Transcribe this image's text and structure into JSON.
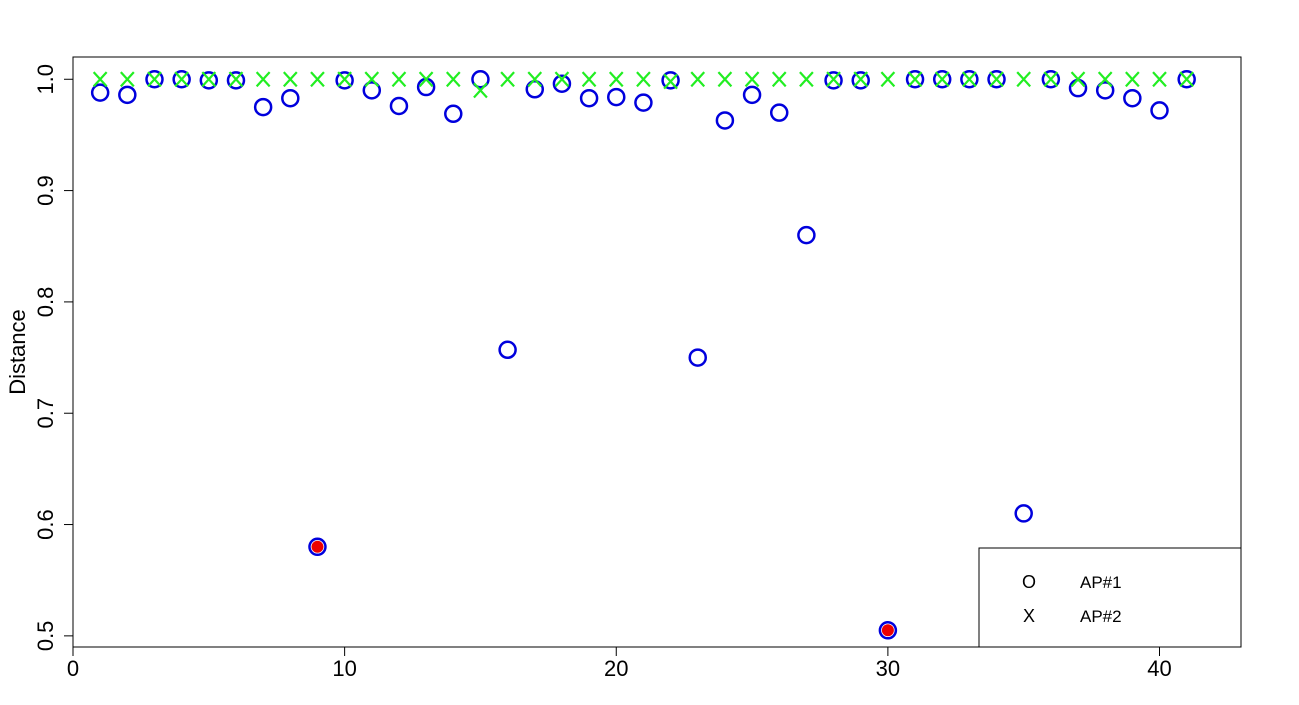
{
  "chart_data": {
    "type": "scatter",
    "title": "",
    "xlabel": "",
    "ylabel": "Distance",
    "xlim": [
      0,
      43
    ],
    "ylim": [
      0.49,
      1.02
    ],
    "xticks": [
      0,
      10,
      20,
      30,
      40
    ],
    "yticks": [
      0.5,
      0.6,
      0.7,
      0.8,
      0.9,
      1.0
    ],
    "xtick_labels": [
      "0",
      "10",
      "20",
      "30",
      "40"
    ],
    "ytick_labels": [
      "0.5",
      "0.6",
      "0.7",
      "0.8",
      "0.9",
      "1.0"
    ],
    "grid": false,
    "legend_position": "bottom-right",
    "series": [
      {
        "name": "AP#1",
        "marker": "O",
        "color": "#0000dd",
        "x": [
          1,
          2,
          3,
          4,
          5,
          6,
          7,
          8,
          9,
          10,
          11,
          12,
          13,
          14,
          15,
          16,
          17,
          18,
          19,
          20,
          21,
          22,
          23,
          24,
          25,
          26,
          27,
          28,
          29,
          30,
          31,
          32,
          33,
          34,
          35,
          36,
          37,
          38,
          39,
          40,
          41
        ],
        "y": [
          0.988,
          0.986,
          1.0,
          1.0,
          0.999,
          0.999,
          0.975,
          0.983,
          0.58,
          0.999,
          0.99,
          0.976,
          0.993,
          0.969,
          1.0,
          0.757,
          0.991,
          0.996,
          0.983,
          0.984,
          0.979,
          0.999,
          0.75,
          0.963,
          0.986,
          0.97,
          0.86,
          0.999,
          0.999,
          0.505,
          1.0,
          1.0,
          1.0,
          1.0,
          0.61,
          1.0,
          0.992,
          0.99,
          0.983,
          0.972,
          1.0
        ]
      },
      {
        "name": "AP#2",
        "marker": "X",
        "color": "#22ee22",
        "x": [
          1,
          2,
          3,
          4,
          5,
          6,
          7,
          8,
          9,
          10,
          11,
          12,
          13,
          14,
          15,
          16,
          17,
          18,
          19,
          20,
          21,
          22,
          23,
          24,
          25,
          26,
          27,
          28,
          29,
          30,
          31,
          32,
          33,
          34,
          35,
          36,
          37,
          38,
          39,
          40,
          41
        ],
        "y": [
          1.0,
          1.0,
          1.0,
          1.0,
          1.0,
          1.0,
          1.0,
          1.0,
          1.0,
          1.0,
          1.0,
          1.0,
          1.0,
          1.0,
          0.99,
          1.0,
          1.0,
          1.0,
          1.0,
          1.0,
          1.0,
          0.998,
          1.0,
          1.0,
          1.0,
          1.0,
          1.0,
          1.0,
          1.0,
          1.0,
          1.0,
          1.0,
          1.0,
          1.0,
          1.0,
          1.0,
          1.0,
          1.0,
          1.0,
          1.0,
          1.0
        ]
      }
    ],
    "highlighted_points": {
      "color": "#ee0000",
      "x": [
        9,
        30
      ],
      "y": [
        0.58,
        0.505
      ]
    }
  }
}
